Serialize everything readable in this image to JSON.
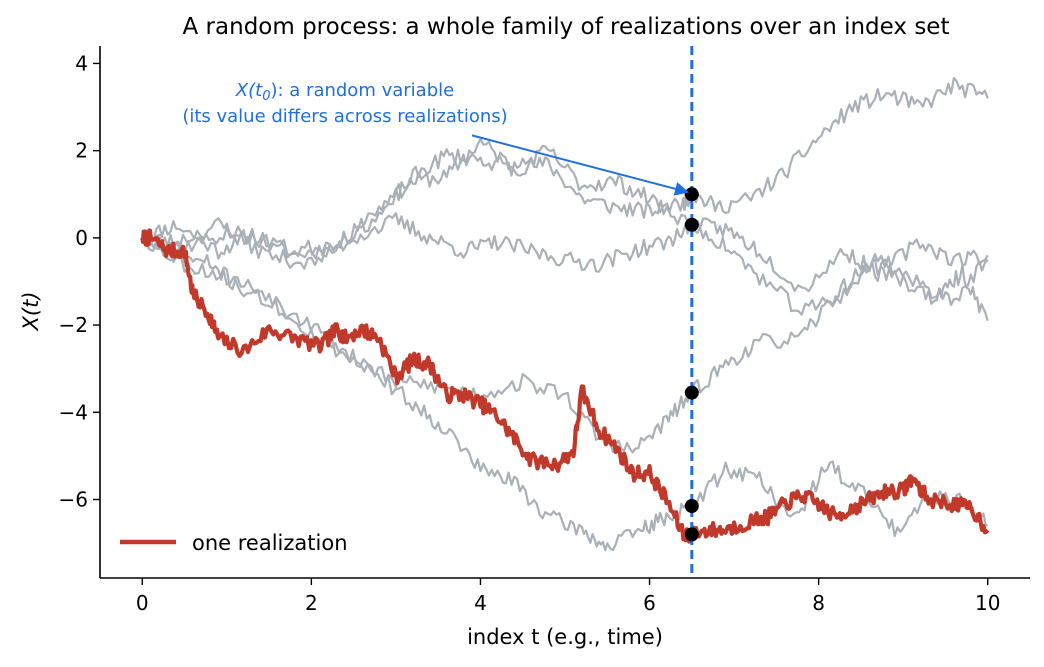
{
  "chart_data": {
    "type": "line",
    "title": "A random process: a whole family of realizations over an index set",
    "xlabel": "index  t  (e.g., time)",
    "ylabel": "X(t)",
    "xlim": [
      -0.5,
      10.5
    ],
    "ylim": [
      -7.8,
      4.4
    ],
    "xticks": [
      0,
      2,
      4,
      6,
      8,
      10
    ],
    "xtick_labels": [
      "0",
      "2",
      "4",
      "6",
      "8",
      "10"
    ],
    "yticks": [
      4,
      2,
      0,
      -2,
      -4,
      -6
    ],
    "ytick_labels": [
      "4",
      "2",
      "0",
      "−2",
      "−4",
      "−6"
    ],
    "grid": false,
    "legend": {
      "position": "bottom-left",
      "entries": [
        "one realization"
      ]
    },
    "highlight_color": "#c0392b",
    "other_color": "#a9b0b7",
    "marker_line": {
      "x": 6.5,
      "color": "#1f6fe0",
      "style": "dashed"
    },
    "annotation": {
      "line1_prefix": "X(t",
      "line1_sub": "0",
      "line1_suffix": "): a random variable",
      "line2": "(its value differs across realizations)",
      "color": "#1f6fe0",
      "arrow_from": [
        3.9,
        2.35
      ],
      "arrow_to": [
        6.45,
        1.05
      ]
    },
    "series": [
      {
        "name": "one realization",
        "highlight": true,
        "keypoints": [
          [
            0,
            0
          ],
          [
            0.1,
            0.0
          ],
          [
            0.3,
            -0.3
          ],
          [
            0.5,
            -0.3
          ],
          [
            0.6,
            -1.3
          ],
          [
            0.8,
            -1.8
          ],
          [
            0.9,
            -2.3
          ],
          [
            1.2,
            -2.6
          ],
          [
            1.5,
            -2.1
          ],
          [
            1.8,
            -2.3
          ],
          [
            2.1,
            -2.5
          ],
          [
            2.3,
            -2.1
          ],
          [
            2.4,
            -2.3
          ],
          [
            2.6,
            -2.1
          ],
          [
            2.8,
            -2.3
          ],
          [
            3.0,
            -3.2
          ],
          [
            3.2,
            -2.8
          ],
          [
            3.4,
            -2.9
          ],
          [
            3.6,
            -3.6
          ],
          [
            3.8,
            -3.6
          ],
          [
            4.0,
            -3.8
          ],
          [
            4.2,
            -4.1
          ],
          [
            4.4,
            -4.6
          ],
          [
            4.6,
            -5.1
          ],
          [
            4.9,
            -5.2
          ],
          [
            5.1,
            -4.9
          ],
          [
            5.2,
            -3.5
          ],
          [
            5.4,
            -4.4
          ],
          [
            5.6,
            -4.8
          ],
          [
            5.8,
            -5.4
          ],
          [
            6.0,
            -5.4
          ],
          [
            6.2,
            -6.0
          ],
          [
            6.4,
            -6.8
          ],
          [
            6.5,
            -6.8
          ],
          [
            6.7,
            -6.7
          ],
          [
            6.9,
            -6.7
          ],
          [
            7.2,
            -6.5
          ],
          [
            7.4,
            -6.4
          ],
          [
            7.6,
            -6.1
          ],
          [
            7.8,
            -5.9
          ],
          [
            8.0,
            -6.1
          ],
          [
            8.2,
            -6.4
          ],
          [
            8.4,
            -6.2
          ],
          [
            8.6,
            -6.0
          ],
          [
            8.8,
            -5.8
          ],
          [
            9.0,
            -5.8
          ],
          [
            9.1,
            -5.5
          ],
          [
            9.3,
            -6.0
          ],
          [
            9.6,
            -6.1
          ],
          [
            9.8,
            -6.2
          ],
          [
            10.0,
            -6.7
          ]
        ],
        "seed": 7
      },
      {
        "name": "",
        "keypoints": [
          [
            0,
            0
          ],
          [
            0.4,
            0.3
          ],
          [
            0.9,
            -0.3
          ],
          [
            1.3,
            0.1
          ],
          [
            1.8,
            -0.4
          ],
          [
            2.3,
            -0.2
          ],
          [
            2.8,
            0.7
          ],
          [
            3.2,
            1.3
          ],
          [
            3.6,
            1.4
          ],
          [
            4.0,
            2.2
          ],
          [
            4.4,
            1.6
          ],
          [
            4.8,
            1.7
          ],
          [
            5.2,
            0.9
          ],
          [
            5.6,
            0.7
          ],
          [
            6.0,
            0.6
          ],
          [
            6.4,
            0.8
          ],
          [
            6.5,
            1.0
          ],
          [
            6.8,
            0.7
          ],
          [
            7.2,
            0.9
          ],
          [
            7.6,
            1.5
          ],
          [
            8.0,
            2.3
          ],
          [
            8.4,
            3.0
          ],
          [
            8.8,
            3.3
          ],
          [
            9.2,
            3.0
          ],
          [
            9.6,
            3.5
          ],
          [
            10.0,
            3.2
          ]
        ],
        "seed": 11
      },
      {
        "name": "",
        "keypoints": [
          [
            0,
            0
          ],
          [
            0.4,
            -0.1
          ],
          [
            0.9,
            0.3
          ],
          [
            1.3,
            0.0
          ],
          [
            1.8,
            -0.3
          ],
          [
            2.3,
            -0.1
          ],
          [
            2.8,
            0.5
          ],
          [
            3.2,
            1.4
          ],
          [
            3.6,
            1.9
          ],
          [
            4.0,
            1.8
          ],
          [
            4.4,
            1.6
          ],
          [
            4.8,
            2.0
          ],
          [
            5.2,
            1.2
          ],
          [
            5.6,
            1.3
          ],
          [
            6.0,
            0.9
          ],
          [
            6.5,
            0.3
          ],
          [
            6.9,
            0.2
          ],
          [
            7.3,
            -0.3
          ],
          [
            7.8,
            -1.2
          ],
          [
            8.3,
            -0.3
          ],
          [
            8.7,
            -0.8
          ],
          [
            9.2,
            -0.1
          ],
          [
            9.6,
            -0.5
          ],
          [
            10.0,
            -0.4
          ]
        ],
        "seed": 23
      },
      {
        "name": "",
        "keypoints": [
          [
            0,
            0
          ],
          [
            0.5,
            -0.2
          ],
          [
            1.0,
            0.1
          ],
          [
            1.5,
            -0.4
          ],
          [
            2.0,
            -0.6
          ],
          [
            2.5,
            0.0
          ],
          [
            3.0,
            0.4
          ],
          [
            3.4,
            0.0
          ],
          [
            3.8,
            -0.3
          ],
          [
            4.2,
            -0.1
          ],
          [
            4.6,
            -0.3
          ],
          [
            5.0,
            -0.5
          ],
          [
            5.4,
            -0.6
          ],
          [
            5.8,
            -0.3
          ],
          [
            6.2,
            -0.1
          ],
          [
            6.5,
            0.3
          ],
          [
            6.9,
            -0.2
          ],
          [
            7.3,
            -0.9
          ],
          [
            7.8,
            -1.7
          ],
          [
            8.3,
            -1.3
          ],
          [
            8.7,
            -0.4
          ],
          [
            9.2,
            -1.1
          ],
          [
            9.6,
            -1.4
          ],
          [
            10.0,
            -0.5
          ]
        ],
        "seed": 37
      },
      {
        "name": "",
        "keypoints": [
          [
            0,
            0
          ],
          [
            0.5,
            -0.6
          ],
          [
            1.0,
            -0.9
          ],
          [
            1.5,
            -1.3
          ],
          [
            2.0,
            -2.2
          ],
          [
            2.5,
            -2.8
          ],
          [
            3.0,
            -3.3
          ],
          [
            3.5,
            -3.4
          ],
          [
            4.0,
            -3.6
          ],
          [
            4.5,
            -3.3
          ],
          [
            5.0,
            -3.6
          ],
          [
            5.4,
            -4.6
          ],
          [
            5.8,
            -4.9
          ],
          [
            6.2,
            -4.2
          ],
          [
            6.5,
            -3.55
          ],
          [
            6.9,
            -2.9
          ],
          [
            7.3,
            -2.4
          ],
          [
            7.8,
            -2.3
          ],
          [
            8.2,
            -1.3
          ],
          [
            8.6,
            -0.6
          ],
          [
            9.0,
            -1.0
          ],
          [
            9.4,
            -1.4
          ],
          [
            9.7,
            -0.8
          ],
          [
            10.0,
            -1.9
          ]
        ],
        "seed": 53
      },
      {
        "name": "",
        "keypoints": [
          [
            0,
            0
          ],
          [
            0.4,
            -0.4
          ],
          [
            0.8,
            -0.6
          ],
          [
            1.2,
            -1.2
          ],
          [
            1.7,
            -1.7
          ],
          [
            2.2,
            -2.3
          ],
          [
            2.7,
            -3.0
          ],
          [
            3.2,
            -3.8
          ],
          [
            3.6,
            -4.4
          ],
          [
            4.0,
            -5.3
          ],
          [
            4.4,
            -5.6
          ],
          [
            4.8,
            -6.4
          ],
          [
            5.2,
            -6.7
          ],
          [
            5.5,
            -7.1
          ],
          [
            5.9,
            -6.7
          ],
          [
            6.2,
            -6.4
          ],
          [
            6.5,
            -6.15
          ],
          [
            6.9,
            -5.3
          ],
          [
            7.3,
            -5.5
          ],
          [
            7.7,
            -6.5
          ],
          [
            8.1,
            -5.2
          ],
          [
            8.5,
            -5.8
          ],
          [
            8.9,
            -6.7
          ],
          [
            9.3,
            -5.9
          ],
          [
            9.7,
            -6.0
          ],
          [
            10.0,
            -6.6
          ]
        ],
        "seed": 71
      }
    ],
    "points_at_marker": [
      1.0,
      0.3,
      -3.55,
      -6.15,
      -6.8
    ],
    "point_color": "#000000"
  }
}
